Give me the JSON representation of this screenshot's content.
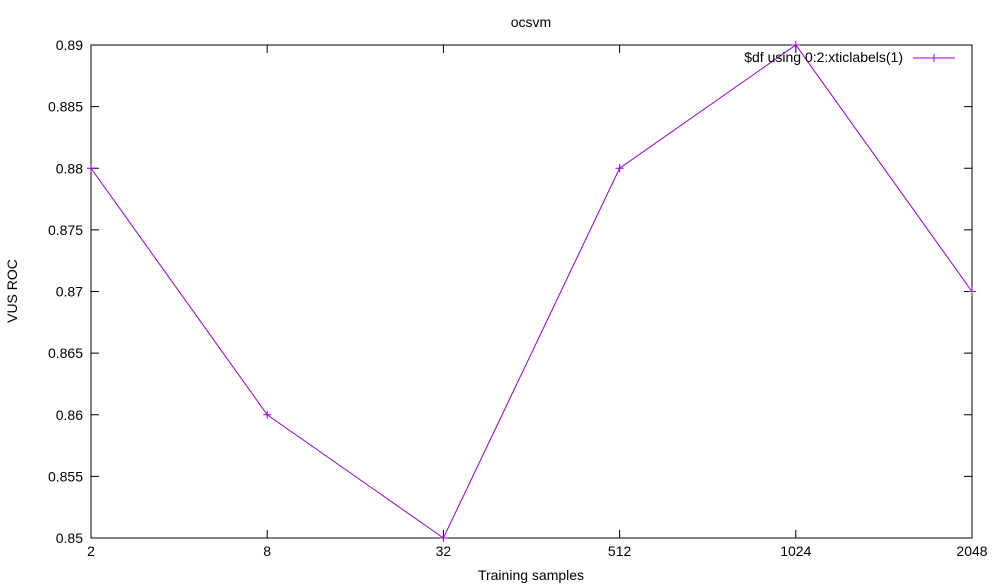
{
  "chart_data": {
    "type": "line",
    "title": "ocsvm",
    "xlabel": "Training samples",
    "ylabel": "VUS ROC",
    "categories": [
      "2",
      "8",
      "32",
      "512",
      "1024",
      "2048"
    ],
    "series": [
      {
        "name": "$df using 0:2:xticlabels(1)",
        "values": [
          0.88,
          0.86,
          0.85,
          0.88,
          0.89,
          0.87
        ],
        "color": "#9400d3"
      }
    ],
    "yticks": [
      "0.85",
      "0.855",
      "0.86",
      "0.865",
      "0.87",
      "0.875",
      "0.88",
      "0.885",
      "0.89"
    ],
    "ylim": [
      0.85,
      0.89
    ],
    "grid": false,
    "legend_position": "top-right"
  }
}
